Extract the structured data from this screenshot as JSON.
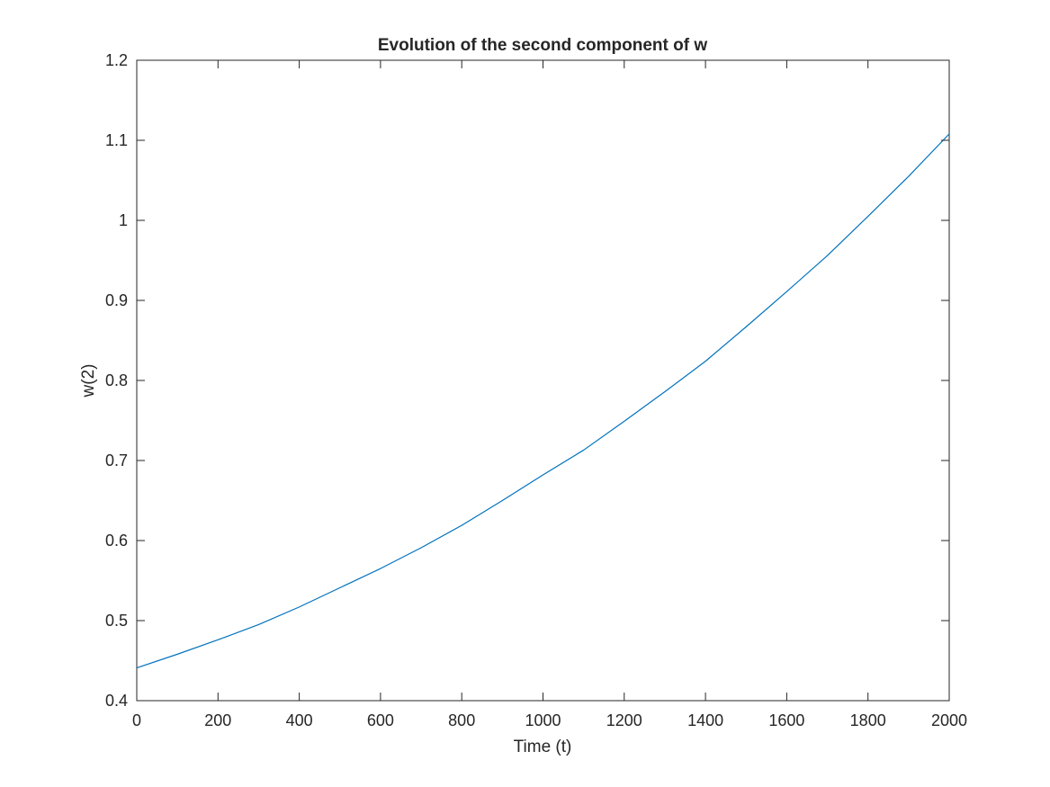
{
  "chart_data": {
    "type": "line",
    "title": "Evolution of the second component of w",
    "xlabel": "Time (t)",
    "ylabel": "w(2)",
    "xlim": [
      0,
      2000
    ],
    "ylim": [
      0.4,
      1.2
    ],
    "xticks": [
      "0",
      "200",
      "400",
      "600",
      "800",
      "1000",
      "1200",
      "1400",
      "1600",
      "1800",
      "2000"
    ],
    "yticks": [
      "0.4",
      "0.5",
      "0.6",
      "0.7",
      "0.8",
      "0.9",
      "1",
      "1.1",
      "1.2"
    ],
    "grid": false,
    "box": true,
    "series": [
      {
        "color": "#0072BD",
        "x": [
          0,
          100,
          200,
          300,
          400,
          500,
          600,
          700,
          800,
          900,
          1000,
          1100,
          1200,
          1300,
          1400,
          1500,
          1600,
          1700,
          1800,
          1900,
          2000
        ],
        "values": [
          0.441,
          0.458,
          0.476,
          0.495,
          0.517,
          0.541,
          0.565,
          0.591,
          0.619,
          0.65,
          0.682,
          0.713,
          0.749,
          0.786,
          0.824,
          0.867,
          0.911,
          0.956,
          1.005,
          1.055,
          1.108
        ]
      }
    ]
  }
}
